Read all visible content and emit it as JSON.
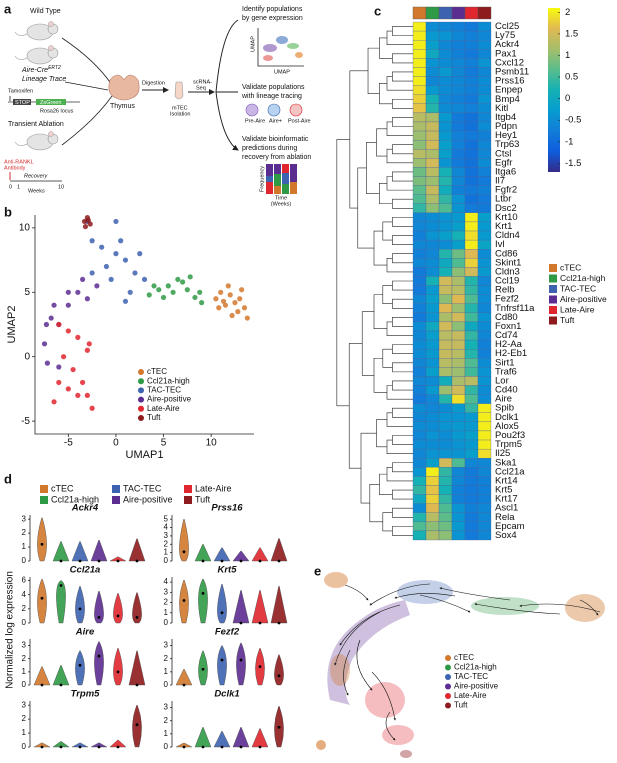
{
  "panel_labels": [
    "a",
    "b",
    "c",
    "d",
    "e"
  ],
  "clusters": [
    {
      "name": "cTEC",
      "color": "#d2782c"
    },
    {
      "name": "Ccl21a-high",
      "color": "#2f9a45"
    },
    {
      "name": "TAC-TEC",
      "color": "#3d62b0"
    },
    {
      "name": "Aire-positive",
      "color": "#5c2d91"
    },
    {
      "name": "Late-Aire",
      "color": "#e0262e"
    },
    {
      "name": "Tuft",
      "color": "#8e1b1e"
    }
  ],
  "schematic": {
    "wild_type": "Wild Type",
    "aire_cre": "Aire-Cre",
    "ert2": "ERT2",
    "lineage_trace": "Lineage Trace",
    "tamoxifen": "Tamoxifen",
    "stop": "STOP",
    "zsgreen": "ZsGreen",
    "rosa26": "Rosa26 locus",
    "transient_ablation": "Transient Ablation",
    "anti_rankl": [
      "Anti-RANKL",
      "Antibody"
    ],
    "recovery": "Recovery",
    "timeline": [
      "0",
      "1",
      "Weeks",
      "10"
    ],
    "thymus": "Thymus",
    "digestion": "Digestion",
    "mtec": [
      "mTEC",
      "Isolation"
    ],
    "scrna": [
      "scRNA-",
      "Seq"
    ],
    "identify": [
      "Identify populations",
      "by gene expression"
    ],
    "umap_axes": [
      "UMAP",
      "UMAP"
    ],
    "validate_lineage": [
      "Validate populations",
      "with lineage tracing"
    ],
    "cells": [
      "Pre-Aire",
      "Aire+",
      "Post-Aire"
    ],
    "validate_recovery": [
      "Validate bioinformatic",
      "predictions during",
      "recovery from ablation"
    ],
    "frequency": "Frequency",
    "time": [
      "Time",
      "(Weeks)"
    ]
  },
  "chart_data": [
    {
      "type": "scatter",
      "xlabel": "UMAP1",
      "ylabel": "UMAP2",
      "xlim": [
        -8.5,
        14.5
      ],
      "ylim": [
        -6,
        11
      ],
      "xticks": [
        -5,
        0,
        5,
        10
      ],
      "yticks": [
        -5,
        0,
        5,
        10
      ],
      "series": [
        {
          "name": "cTEC",
          "color": "#d2782c",
          "x": [
            10.5,
            11,
            11.5,
            12,
            12.5,
            13,
            13.5,
            13.8,
            12.8,
            11.8,
            13.2,
            10.8,
            12.2,
            11.3
          ],
          "y": [
            4.5,
            5,
            4,
            4.8,
            4.2,
            4.5,
            3.8,
            3,
            3.5,
            5.5,
            5.2,
            3.8,
            3.2,
            4.3
          ]
        },
        {
          "name": "Ccl21a-high",
          "color": "#2f9a45",
          "x": [
            3.5,
            4.5,
            5.5,
            6.5,
            7,
            7.5,
            8.3,
            9,
            6,
            5,
            7.8,
            4,
            8.8
          ],
          "y": [
            4.8,
            5.2,
            5.5,
            6,
            5.8,
            5.2,
            4.6,
            4.2,
            5,
            4.6,
            6.2,
            5.5,
            5
          ]
        },
        {
          "name": "TAC-TEC",
          "color": "#3d62b0",
          "x": [
            -3,
            -2.5,
            -1.5,
            0,
            1,
            2,
            3,
            1.5,
            -0.5,
            0.5,
            2.5,
            -1,
            -2.5,
            1,
            0
          ],
          "y": [
            10.5,
            9,
            8.5,
            8,
            7.5,
            6.5,
            6,
            5,
            6,
            9,
            8,
            7,
            6.5,
            4.3,
            10.5
          ]
        },
        {
          "name": "Aire-positive",
          "color": "#5c2d91",
          "x": [
            -2,
            -3.5,
            -5,
            -6.5,
            -7.3,
            -7.5,
            -7.2,
            -6,
            -5,
            -4,
            -6,
            -3,
            -6.8
          ],
          "y": [
            5.5,
            6,
            5,
            4,
            2.5,
            1,
            -0.5,
            -0.8,
            4,
            5,
            2.5,
            4.5,
            3
          ]
        },
        {
          "name": "Late-Aire",
          "color": "#e0262e",
          "x": [
            -6,
            -5,
            -4,
            -3,
            -5.5,
            -4.5,
            -3.5,
            -3,
            -2.5,
            -5,
            -6,
            -4,
            -2.8,
            -6.5
          ],
          "y": [
            2.5,
            2,
            1.5,
            0.5,
            0,
            -1,
            -2,
            -3,
            -4,
            -2.5,
            -2,
            -3,
            1,
            -3.5
          ]
        },
        {
          "name": "Tuft",
          "color": "#8e1b1e",
          "x": [
            -3.3,
            -3,
            -2.7,
            -3.2,
            -2.9
          ],
          "y": [
            10.5,
            10.8,
            10.3,
            10.1,
            10.6
          ]
        }
      ]
    },
    {
      "type": "heatmap",
      "colormap": "parula",
      "clim": [
        -1.7,
        2.1
      ],
      "colorbar_ticks": [
        2,
        1.5,
        1,
        0.5,
        0,
        -0.5,
        -1,
        -1.5
      ],
      "rows": [
        "Ccl25",
        "Ly75",
        "Ackr4",
        "Pax1",
        "Cxcl12",
        "Psmb11",
        "Prss16",
        "Enpep",
        "Bmp4",
        "Kitl",
        "Itgb4",
        "Pdpn",
        "Hey1",
        "Trp63",
        "Ctsl",
        "Egfr",
        "Itga6",
        "Il7",
        "Fgfr2",
        "Ltbr",
        "Dsc2",
        "Krt10",
        "Krt1",
        "Cldn4",
        "Ivl",
        "Cd86",
        "Skint1",
        "Cldn3",
        "Ccl19",
        "Relb",
        "Fezf2",
        "Tnfrsf11a",
        "Cd80",
        "Foxn1",
        "Cd74",
        "H2-Aa",
        "H2-Eb1",
        "Sirt1",
        "Traf6",
        "Lor",
        "Cd40",
        "Aire",
        "Spib",
        "Dclk1",
        "Alox5",
        "Pou2f3",
        "Trpm5",
        "Il25",
        "Ska1",
        "Ccl21a",
        "Krt14",
        "Krt5",
        "Krt17",
        "Ascl1",
        "Rela",
        "Epcam",
        "Sox4"
      ],
      "values": [
        [
          2,
          -0.5,
          -0.6,
          -0.7,
          -0.8,
          -0.5
        ],
        [
          2,
          -0.3,
          -0.4,
          -0.6,
          -0.7,
          -0.6
        ],
        [
          2,
          -0.2,
          -0.6,
          -0.7,
          -0.7,
          -0.5
        ],
        [
          2,
          0,
          -0.5,
          -0.7,
          -0.8,
          -0.6
        ],
        [
          2,
          -0.4,
          -0.5,
          -0.6,
          -0.7,
          -0.4
        ],
        [
          2,
          -0.5,
          -0.3,
          -0.6,
          -0.8,
          -0.6
        ],
        [
          2,
          -0.6,
          -0.5,
          -0.6,
          -0.7,
          -0.5
        ],
        [
          1.9,
          -0.3,
          -0.5,
          -0.6,
          -0.7,
          -0.5
        ],
        [
          1.8,
          0.2,
          -0.6,
          -0.7,
          -0.8,
          -0.4
        ],
        [
          1.7,
          0.3,
          -0.5,
          -0.6,
          -0.7,
          -0.5
        ],
        [
          1.3,
          1.2,
          -0.3,
          -0.8,
          -0.9,
          -0.6
        ],
        [
          1.2,
          1.4,
          -0.4,
          -0.8,
          -0.9,
          -0.5
        ],
        [
          1.1,
          1.4,
          -0.3,
          -0.7,
          -0.8,
          -0.7
        ],
        [
          1,
          1.5,
          -0.2,
          -0.7,
          -0.9,
          -0.6
        ],
        [
          1.3,
          1.2,
          -0.2,
          -0.8,
          -0.9,
          -0.6
        ],
        [
          1.1,
          1.5,
          -0.4,
          -0.8,
          -0.9,
          -0.5
        ],
        [
          0.8,
          1.3,
          0.2,
          -0.6,
          -0.9,
          -0.7
        ],
        [
          0.9,
          1.1,
          0.3,
          -0.6,
          -0.9,
          -0.8
        ],
        [
          0.7,
          1.4,
          0.1,
          -0.7,
          -0.8,
          -0.7
        ],
        [
          0.6,
          1.2,
          0.4,
          -0.4,
          -0.9,
          -0.8
        ],
        [
          0.4,
          1,
          0.6,
          -0.4,
          -0.8,
          -0.8
        ],
        [
          -0.6,
          -0.5,
          -0.4,
          -0.3,
          2,
          -0.2
        ],
        [
          -0.6,
          -0.5,
          -0.4,
          -0.2,
          2,
          -0.3
        ],
        [
          -0.7,
          -0.4,
          -0.2,
          0.2,
          1.9,
          -0.3
        ],
        [
          -0.6,
          -0.6,
          -0.5,
          -0.2,
          2,
          -0.1
        ],
        [
          -0.7,
          -0.6,
          0.3,
          0.8,
          1.6,
          -0.5
        ],
        [
          -0.6,
          -0.5,
          0,
          0.6,
          1.8,
          -0.4
        ],
        [
          -0.8,
          -0.5,
          0.2,
          1,
          1.5,
          -0.3
        ],
        [
          -0.8,
          0.2,
          1.5,
          1.2,
          0.3,
          -0.6
        ],
        [
          -0.8,
          -0.3,
          1.4,
          1.3,
          0.4,
          -0.5
        ],
        [
          -0.6,
          -0.2,
          1,
          1.6,
          0.6,
          -0.5
        ],
        [
          -0.7,
          -0.3,
          1.6,
          1.1,
          0.3,
          -0.6
        ],
        [
          -0.8,
          -0.4,
          1.2,
          1.5,
          0.5,
          -0.4
        ],
        [
          -0.5,
          0,
          1.5,
          1,
          0,
          -0.5
        ],
        [
          -0.6,
          -0.2,
          1.3,
          1.4,
          0.4,
          -0.6
        ],
        [
          -0.5,
          -0.3,
          1.4,
          1.4,
          0.2,
          -0.7
        ],
        [
          -0.5,
          -0.3,
          1.4,
          1.3,
          0.3,
          -0.7
        ],
        [
          -0.6,
          -0.4,
          1.3,
          1.2,
          0.6,
          -0.5
        ],
        [
          -0.7,
          -0.2,
          1.2,
          1.1,
          0.5,
          -0.4
        ],
        [
          -0.6,
          -0.5,
          0.1,
          1.2,
          1.3,
          -0.4
        ],
        [
          -0.7,
          -0.3,
          1.1,
          1.5,
          0.4,
          -0.5
        ],
        [
          -0.8,
          -0.6,
          0.3,
          1.9,
          0.6,
          -0.5
        ],
        [
          -0.5,
          -0.6,
          -0.5,
          -0.3,
          0.4,
          2
        ],
        [
          -0.6,
          -0.5,
          -0.4,
          -0.4,
          -0.3,
          2
        ],
        [
          -0.5,
          -0.5,
          -0.4,
          -0.3,
          -0.3,
          2
        ],
        [
          -0.6,
          -0.4,
          -0.5,
          -0.3,
          -0.2,
          2
        ],
        [
          -0.5,
          -0.5,
          -0.5,
          -0.4,
          -0.3,
          2
        ],
        [
          -0.6,
          -0.4,
          -0.4,
          -0.4,
          -0.2,
          1.9
        ],
        [
          -0.6,
          -0.2,
          1.5,
          0.6,
          -0.6,
          -0.6
        ],
        [
          -0.4,
          2,
          0.4,
          -0.6,
          -0.8,
          -0.6
        ],
        [
          0.2,
          1.8,
          0.3,
          -0.6,
          -0.8,
          -0.7
        ],
        [
          0.4,
          1.7,
          0.2,
          -0.7,
          -0.8,
          -0.7
        ],
        [
          0,
          1.8,
          0.4,
          -0.7,
          -0.8,
          -0.7
        ],
        [
          -0.5,
          1.6,
          0.6,
          -0.4,
          -0.7,
          -0.6
        ],
        [
          0.3,
          1.3,
          0.7,
          -0.4,
          -0.8,
          -0.6
        ],
        [
          0.6,
          1,
          0.8,
          -0.3,
          -0.8,
          -0.6
        ],
        [
          0.2,
          1.2,
          1,
          -0.4,
          -0.8,
          -0.6
        ]
      ]
    },
    {
      "type": "violin",
      "title": "Ackr4",
      "ylim": [
        0,
        3.3
      ],
      "yticks": [
        0,
        1,
        2,
        3
      ],
      "values": [
        1.2,
        0,
        0,
        0,
        0,
        0
      ],
      "max": [
        3.1,
        1.4,
        1.4,
        1.5,
        0.3,
        1.6
      ]
    },
    {
      "type": "violin",
      "title": "Prss16",
      "ylim": [
        0,
        5.5
      ],
      "yticks": [
        0,
        1,
        2,
        3,
        4,
        5
      ],
      "values": [
        1.1,
        0,
        0,
        0,
        0,
        0
      ],
      "max": [
        5,
        2,
        1.6,
        1.2,
        1.6,
        2.7
      ]
    },
    {
      "type": "violin",
      "title": "Ccl21a",
      "ylim": [
        0,
        6.5
      ],
      "yticks": [
        0,
        2,
        4,
        6
      ],
      "values": [
        3.5,
        5.3,
        2,
        0.8,
        1,
        0.8
      ],
      "max": [
        6.2,
        6,
        5.2,
        4.5,
        4.2,
        4.3
      ]
    },
    {
      "type": "violin",
      "title": "Krt5",
      "ylim": [
        0,
        4.5
      ],
      "yticks": [
        0,
        1,
        2,
        3,
        4
      ],
      "values": [
        2.2,
        2.9,
        1,
        0,
        0,
        0
      ],
      "max": [
        4.2,
        4.3,
        3.8,
        3.2,
        3.2,
        3.6
      ]
    },
    {
      "type": "violin",
      "title": "Aire",
      "ylim": [
        0,
        3.5
      ],
      "yticks": [
        0,
        1,
        2,
        3
      ],
      "values": [
        0,
        0,
        1.5,
        2.2,
        1,
        0
      ],
      "max": [
        1.4,
        1.5,
        2.6,
        3.3,
        2.8,
        2.6
      ]
    },
    {
      "type": "violin",
      "title": "Fezf2",
      "ylim": [
        0,
        3.5
      ],
      "yticks": [
        0,
        1,
        2,
        3
      ],
      "values": [
        0,
        1.2,
        1.9,
        1.9,
        1.4,
        0.7
      ],
      "max": [
        1.2,
        2.6,
        3,
        3.2,
        2.8,
        2.3
      ]
    },
    {
      "type": "violin",
      "title": "Trpm5",
      "ylim": [
        0,
        3.3
      ],
      "yticks": [
        0,
        1,
        2,
        3
      ],
      "values": [
        0,
        0,
        0,
        0,
        0,
        1.6
      ],
      "max": [
        0.3,
        0.4,
        0.3,
        0.3,
        0.5,
        3
      ]
    },
    {
      "type": "violin",
      "title": "Dclk1",
      "ylim": [
        0,
        3.5
      ],
      "yticks": [
        0,
        1,
        2,
        3
      ],
      "values": [
        0,
        0,
        0,
        0,
        0,
        1.5
      ],
      "max": [
        0.3,
        1.5,
        1.2,
        1.5,
        1.4,
        3.1
      ]
    }
  ],
  "violin_ylabel": "Normalized log expression"
}
